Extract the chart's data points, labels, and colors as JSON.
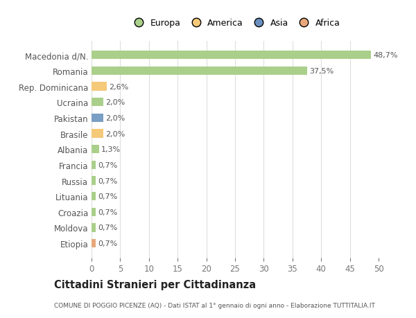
{
  "categories": [
    "Etiopia",
    "Moldova",
    "Croazia",
    "Lituania",
    "Russia",
    "Francia",
    "Albania",
    "Brasile",
    "Pakistan",
    "Ucraina",
    "Rep. Dominicana",
    "Romania",
    "Macedonia d/N."
  ],
  "values": [
    0.7,
    0.7,
    0.7,
    0.7,
    0.7,
    0.7,
    1.3,
    2.0,
    2.0,
    2.0,
    2.6,
    37.5,
    48.7
  ],
  "labels": [
    "0,7%",
    "0,7%",
    "0,7%",
    "0,7%",
    "0,7%",
    "0,7%",
    "1,3%",
    "2,0%",
    "2,0%",
    "2,0%",
    "2,6%",
    "37,5%",
    "48,7%"
  ],
  "colors": [
    "#E8A87C",
    "#AACF8A",
    "#AACF8A",
    "#AACF8A",
    "#AACF8A",
    "#AACF8A",
    "#AACF8A",
    "#F5C97A",
    "#7A9EC4",
    "#AACF8A",
    "#F5C97A",
    "#AACF8A",
    "#AACF8A"
  ],
  "legend": [
    {
      "label": "Europa",
      "color": "#AACF8A"
    },
    {
      "label": "America",
      "color": "#F5C97A"
    },
    {
      "label": "Asia",
      "color": "#6A8FBF"
    },
    {
      "label": "Africa",
      "color": "#E8A87C"
    }
  ],
  "xlim": [
    0,
    50
  ],
  "xticks": [
    0,
    5,
    10,
    15,
    20,
    25,
    30,
    35,
    40,
    45,
    50
  ],
  "title": "Cittadini Stranieri per Cittadinanza",
  "subtitle": "COMUNE DI POGGIO PICENZE (AQ) - Dati ISTAT al 1° gennaio di ogni anno - Elaborazione TUTTITALIA.IT",
  "bg_color": "#ffffff",
  "grid_color": "#dddddd",
  "bar_height": 0.55
}
